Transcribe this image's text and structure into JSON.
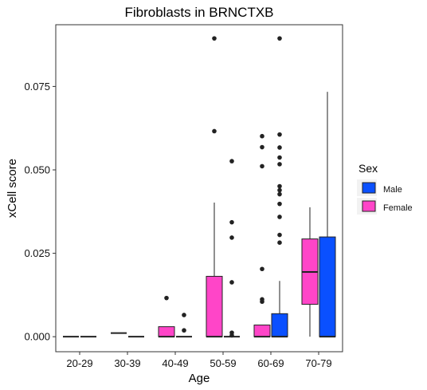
{
  "chart_data": {
    "type": "box",
    "title": "Fibroblasts in BRNCTXB",
    "xlabel": "Age",
    "ylabel": "xCell score",
    "categories": [
      "20-29",
      "30-39",
      "40-49",
      "50-59",
      "60-69",
      "70-79"
    ],
    "yticks": [
      0.0,
      0.025,
      0.05,
      0.075
    ],
    "ytick_labels": [
      "0.000",
      "0.025",
      "0.050",
      "0.075"
    ],
    "ylim": [
      -0.0045,
      0.0935
    ],
    "grid": false,
    "legend": {
      "title": "Sex",
      "placement": "right",
      "entries": [
        {
          "label": "Male",
          "color": "#0a50ff"
        },
        {
          "label": "Female",
          "color": "#ff45c8"
        }
      ]
    },
    "series": [
      {
        "name": "Female",
        "color": "#ff45c8",
        "boxes": [
          {
            "category": "20-29",
            "q1": 0.0,
            "median": 0.0,
            "q3": 0.0,
            "whisker_low": 0.0,
            "whisker_high": 0.0,
            "outliers": []
          },
          {
            "category": "30-39",
            "q1": 0.0011,
            "median": 0.0011,
            "q3": 0.0011,
            "whisker_low": 0.0011,
            "whisker_high": 0.0011,
            "outliers": []
          },
          {
            "category": "40-49",
            "q1": 0.0,
            "median": 0.0,
            "q3": 0.003,
            "whisker_low": 0.0,
            "whisker_high": 0.003,
            "outliers": [
              0.0116
            ]
          },
          {
            "category": "50-59",
            "q1": 0.0,
            "median": 0.0,
            "q3": 0.0181,
            "whisker_low": 0.0,
            "whisker_high": 0.0402,
            "outliers": [
              0.0616,
              0.0894
            ]
          },
          {
            "category": "60-69",
            "q1": 0.0,
            "median": 0.0,
            "q3": 0.0035,
            "whisker_low": 0.0,
            "whisker_high": 0.0035,
            "outliers": [
              0.0105,
              0.0112,
              0.0203,
              0.0511,
              0.0568,
              0.0601
            ]
          },
          {
            "category": "70-79",
            "q1": 0.0097,
            "median": 0.0194,
            "q3": 0.0293,
            "whisker_low": 0.0,
            "whisker_high": 0.0388,
            "outliers": []
          }
        ]
      },
      {
        "name": "Male",
        "color": "#0a50ff",
        "boxes": [
          {
            "category": "20-29",
            "q1": 0.0,
            "median": 0.0,
            "q3": 0.0,
            "whisker_low": 0.0,
            "whisker_high": 0.0,
            "outliers": []
          },
          {
            "category": "30-39",
            "q1": 0.0,
            "median": 0.0,
            "q3": 0.0,
            "whisker_low": 0.0,
            "whisker_high": 0.0,
            "outliers": []
          },
          {
            "category": "40-49",
            "q1": 0.0,
            "median": 0.0,
            "q3": 0.0,
            "whisker_low": 0.0,
            "whisker_high": 0.0,
            "outliers": [
              0.0019,
              0.0065
            ]
          },
          {
            "category": "50-59",
            "q1": 0.0,
            "median": 0.0,
            "q3": 0.0,
            "whisker_low": 0.0,
            "whisker_high": 0.0,
            "outliers": [
              0.0004,
              0.0012,
              0.0163,
              0.0297,
              0.0343,
              0.0526
            ]
          },
          {
            "category": "60-69",
            "q1": 0.0,
            "median": 0.0,
            "q3": 0.0069,
            "whisker_low": 0.0,
            "whisker_high": 0.0167,
            "outliers": [
              0.0282,
              0.0305,
              0.0359,
              0.0398,
              0.0427,
              0.0439,
              0.0451,
              0.0517,
              0.0537,
              0.0567,
              0.0606,
              0.0894
            ]
          },
          {
            "category": "70-79",
            "q1": 0.0,
            "median": 0.0,
            "q3": 0.0299,
            "whisker_low": 0.0,
            "whisker_high": 0.0734,
            "outliers": []
          }
        ]
      }
    ]
  }
}
